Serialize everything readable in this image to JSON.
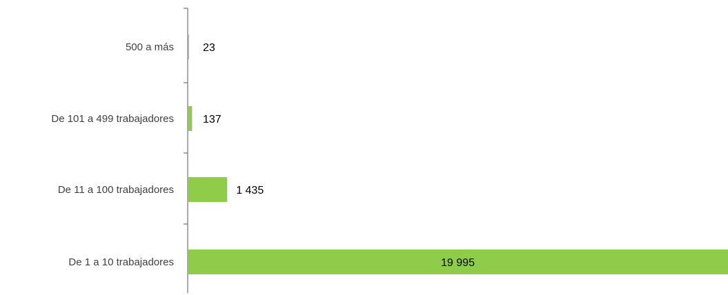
{
  "colors": {
    "bar": "#8fcc4a",
    "axis": "#555555",
    "category_text": "#404040",
    "value_text": "#000000"
  },
  "chart_data": {
    "type": "bar",
    "orientation": "horizontal",
    "title": "",
    "xlabel": "",
    "ylabel": "",
    "categories": [
      "500 a más",
      "De 101 a 499 trabajadores",
      "De 11 a 100 trabajadores",
      "De 1 a 10 trabajadores"
    ],
    "values": [
      23,
      137,
      1435,
      19995
    ],
    "value_labels": [
      "23",
      "137",
      "1 435",
      "19 995"
    ],
    "xlim": [
      0,
      19995
    ],
    "grid": false,
    "legend": "none"
  }
}
